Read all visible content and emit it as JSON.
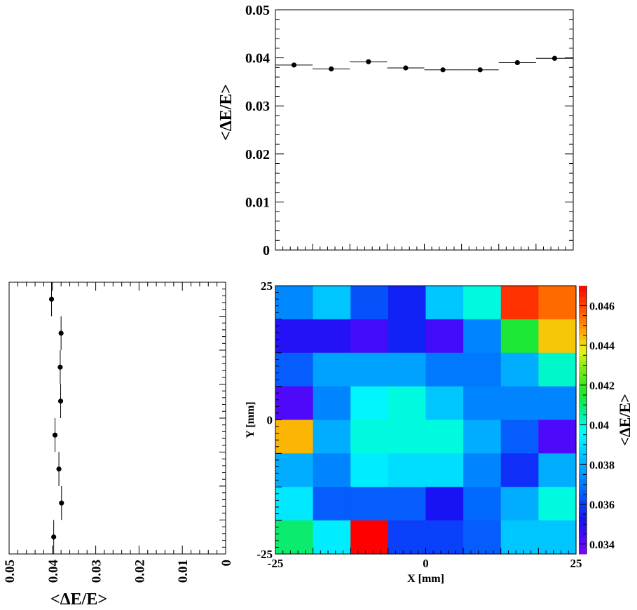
{
  "chart_data": [
    {
      "type": "scatter",
      "panel": "top",
      "xlabel": "",
      "ylabel": "<ΔE/E>",
      "xlim": [
        -25,
        25
      ],
      "ylim": [
        0,
        0.05
      ],
      "y_ticks": [
        {
          "v": 0,
          "label": "0"
        },
        {
          "v": 0.01,
          "label": "0.01"
        },
        {
          "v": 0.02,
          "label": "0.02"
        },
        {
          "v": 0.03,
          "label": "0.03"
        },
        {
          "v": 0.04,
          "label": "0.04"
        },
        {
          "v": 0.05,
          "label": "0.05"
        }
      ],
      "x": [
        -21.875,
        -15.625,
        -9.375,
        -3.125,
        3.125,
        9.375,
        15.625,
        21.875
      ],
      "x_halfwidth": 3.125,
      "values": [
        0.0385,
        0.0377,
        0.0392,
        0.0379,
        0.0375,
        0.0375,
        0.039,
        0.0399
      ],
      "errors": [
        0.0003,
        0.0003,
        0.0003,
        0.0003,
        0.0003,
        0.0003,
        0.0003,
        0.0003
      ]
    },
    {
      "type": "scatter",
      "panel": "left",
      "orientation": "horizontal",
      "xlabel": "<ΔE/E>",
      "xlim_reversed": [
        0.05,
        0
      ],
      "ylim": [
        -25,
        25
      ],
      "x_ticks": [
        {
          "v": 0.05,
          "label": "0.05"
        },
        {
          "v": 0.04,
          "label": "0.04"
        },
        {
          "v": 0.03,
          "label": "0.03"
        },
        {
          "v": 0.02,
          "label": "0.02"
        },
        {
          "v": 0.01,
          "label": "0.01"
        },
        {
          "v": 0,
          "label": "0"
        }
      ],
      "y": [
        21.875,
        15.625,
        9.375,
        3.125,
        -3.125,
        -9.375,
        -15.625,
        -21.875
      ],
      "y_halfwidth": 3.125,
      "values": [
        0.0402,
        0.038,
        0.0382,
        0.0381,
        0.0394,
        0.0385,
        0.0379,
        0.0397
      ],
      "errors": [
        0.0003,
        0.0003,
        0.0003,
        0.0003,
        0.0003,
        0.0003,
        0.0003,
        0.0003
      ]
    },
    {
      "type": "heatmap",
      "panel": "main",
      "xlabel": "X [mm]",
      "ylabel": "Y [mm]",
      "zlabel": "<ΔE/E>",
      "xlim": [
        -25,
        25
      ],
      "ylim": [
        -25,
        25
      ],
      "x_ticks": [
        {
          "v": -25,
          "label": "-25"
        },
        {
          "v": 0,
          "label": "0"
        },
        {
          "v": 25,
          "label": "25"
        }
      ],
      "y_ticks": [
        {
          "v": -25,
          "label": "-25"
        },
        {
          "v": 0,
          "label": "0"
        },
        {
          "v": 25,
          "label": "25"
        }
      ],
      "zlim": [
        0.0335,
        0.047
      ],
      "z_ticks": [
        {
          "v": 0.034,
          "label": "0.034"
        },
        {
          "v": 0.036,
          "label": "0.036"
        },
        {
          "v": 0.038,
          "label": "0.038"
        },
        {
          "v": 0.04,
          "label": "0.04"
        },
        {
          "v": 0.042,
          "label": "0.042"
        },
        {
          "v": 0.044,
          "label": "0.044"
        },
        {
          "v": 0.046,
          "label": "0.046"
        }
      ],
      "nx": 8,
      "ny": 8,
      "rows_top_to_bottom": [
        [
          0.0373,
          0.0385,
          0.0363,
          0.0355,
          0.0385,
          0.04,
          0.0463,
          0.0455
        ],
        [
          0.035,
          0.035,
          0.0345,
          0.0355,
          0.0345,
          0.0372,
          0.0415,
          0.0443
        ],
        [
          0.0365,
          0.0378,
          0.0378,
          0.0378,
          0.037,
          0.037,
          0.038,
          0.0402
        ],
        [
          0.0343,
          0.0372,
          0.0395,
          0.04,
          0.0385,
          0.0372,
          0.0372,
          0.0372
        ],
        [
          0.0445,
          0.038,
          0.04,
          0.04,
          0.04,
          0.038,
          0.0365,
          0.0343
        ],
        [
          0.038,
          0.0372,
          0.0393,
          0.039,
          0.039,
          0.0372,
          0.0357,
          0.038
        ],
        [
          0.0392,
          0.0365,
          0.0365,
          0.0365,
          0.0352,
          0.0367,
          0.038,
          0.04
        ],
        [
          0.041,
          0.0393,
          0.047,
          0.036,
          0.036,
          0.0365,
          0.0385,
          0.0385
        ]
      ]
    }
  ]
}
